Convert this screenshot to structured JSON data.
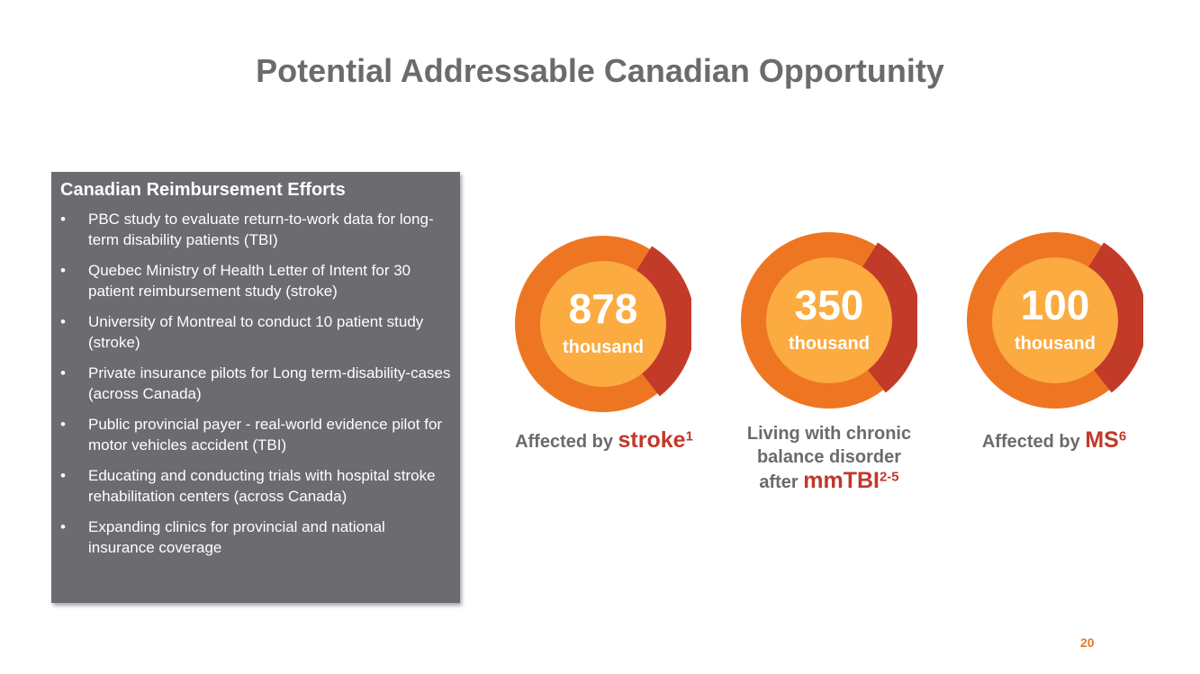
{
  "title": "Potential Addressable Canadian Opportunity",
  "panel": {
    "heading": "Canadian Reimbursement Efforts",
    "bullet_mark": "•",
    "items": [
      "PBC study to evaluate return-to-work data for long-term disability patients (TBI)",
      "Quebec Ministry of Health Letter of Intent for 30 patient reimbursement study (stroke)",
      "University of Montreal to conduct 10 patient study (stroke)",
      "Private insurance pilots for Long term-disability-cases (across Canada)",
      "Public provincial payer - real-world evidence pilot for motor vehicles accident (TBI)",
      "Educating and conducting trials with hospital stroke rehabilitation centers (across Canada)",
      "Expanding clinics for provincial and national insurance coverage"
    ]
  },
  "stats": [
    {
      "number": "878",
      "unit": "thousand",
      "caption_prefix": "Affected by ",
      "caption_accent": "stroke",
      "caption_sup": "1"
    },
    {
      "number": "350",
      "unit": "thousand",
      "caption_line1": "Living with chronic",
      "caption_line2": "balance disorder",
      "caption_prefix": "after ",
      "caption_accent": "mmTBI",
      "caption_sup": "2-5"
    },
    {
      "number": "100",
      "unit": "thousand",
      "caption_prefix": "Affected by ",
      "caption_accent": "MS",
      "caption_sup": "6"
    }
  ],
  "colors": {
    "outer_ring": "#ee7623",
    "inner_disc": "#fbab40",
    "ring_segment": "#c23b29",
    "panel_bg": "#6b6b70",
    "accent_text": "#c0392b"
  },
  "page_number": "20"
}
